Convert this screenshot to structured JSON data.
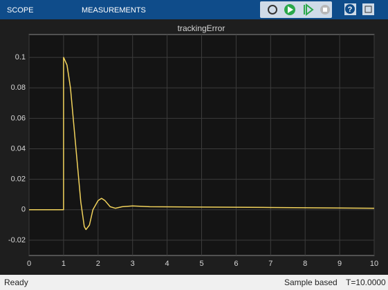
{
  "toolbar": {
    "tabs": [
      "SCOPE",
      "MEASUREMENTS"
    ]
  },
  "chart_data": {
    "type": "line",
    "title": "trackingError",
    "x": [
      0,
      1,
      1,
      1.1,
      1.2,
      1.3,
      1.4,
      1.5,
      1.6,
      1.65,
      1.75,
      1.85,
      2.0,
      2.1,
      2.2,
      2.35,
      2.5,
      2.7,
      3.0,
      3.5,
      5,
      7,
      10
    ],
    "series": [
      {
        "color": "#f2d35c",
        "values": [
          0,
          0,
          0.1,
          0.095,
          0.08,
          0.055,
          0.03,
          0.005,
          -0.011,
          -0.013,
          -0.01,
          0,
          0.006,
          0.0075,
          0.006,
          0.002,
          0.001,
          0.002,
          0.0025,
          0.002,
          0.0018,
          0.0015,
          0.001
        ]
      }
    ],
    "xlim": [
      0,
      10
    ],
    "ylim": [
      -0.03,
      0.115
    ],
    "xticks": [
      0,
      1,
      2,
      3,
      4,
      5,
      6,
      7,
      8,
      9,
      10
    ],
    "yticks": [
      -0.02,
      0,
      0.02,
      0.04,
      0.06,
      0.08,
      0.1
    ],
    "grid": true
  },
  "status": {
    "state": "Ready",
    "mode": "Sample based",
    "time": "T=10.0000"
  }
}
